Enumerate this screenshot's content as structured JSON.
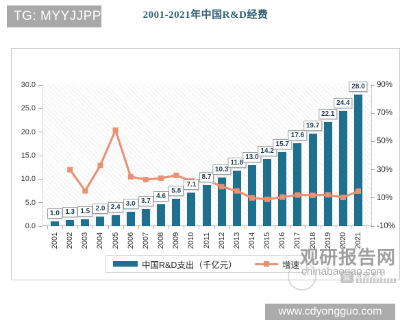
{
  "header": {
    "tg_label": "TG: MYYJJPP"
  },
  "watermarks": {
    "site_name": "观研报告网",
    "site_domain": "chinabaogao.com",
    "stamp_char": "宜",
    "stamp_text": "观研天下",
    "bottom_url": "www.cdyongguo.com"
  },
  "chart_data": {
    "type": "bar+line",
    "title": "2001-2021年中国R&D经费",
    "categories": [
      "2001",
      "2002",
      "2003",
      "2004",
      "2005",
      "2006",
      "2007",
      "2008",
      "2009",
      "2010",
      "2011",
      "2012",
      "2013",
      "2014",
      "2015",
      "2016",
      "2017",
      "2018",
      "2019",
      "2020",
      "2021"
    ],
    "series": [
      {
        "name": "中国R&D支出（千亿元）",
        "type": "bar",
        "color": "#1f6f8e",
        "values": [
          1.0,
          1.3,
          1.5,
          2.0,
          2.4,
          3.0,
          3.7,
          4.6,
          5.8,
          7.1,
          8.7,
          10.3,
          11.8,
          13.0,
          14.2,
          15.7,
          17.6,
          19.7,
          22.1,
          24.4,
          28.0
        ],
        "labels": [
          "1.0",
          "1.3",
          "1.5",
          "2.0",
          "2.4",
          "3.0",
          "3.7",
          "4.6",
          "5.8",
          "7.1",
          "8.7",
          "10.3",
          "11.8",
          "13.0",
          "14.2",
          "15.7",
          "17.6",
          "19.7",
          "22.1",
          "24.4",
          "28.0"
        ]
      },
      {
        "name": "增速",
        "type": "line",
        "color": "#e99273",
        "values": [
          null,
          30,
          15,
          33,
          58,
          25,
          23,
          24,
          26,
          22,
          23,
          18,
          15,
          10,
          9,
          10.6,
          12.1,
          11.9,
          12.2,
          10.4,
          14.8
        ]
      }
    ],
    "left_axis": {
      "min": 0,
      "max": 30,
      "labels": [
        "0.0",
        "5.0",
        "10.0",
        "15.0",
        "20.0",
        "25.0",
        "30.0"
      ],
      "values": [
        0,
        5,
        10,
        15,
        20,
        25,
        30
      ]
    },
    "right_axis": {
      "min": -10,
      "max": 90,
      "labels": [
        "-10%",
        "10%",
        "30%",
        "50%",
        "70%",
        "90%"
      ],
      "values": [
        -10,
        10,
        30,
        50,
        70,
        90
      ]
    },
    "legend_position": "bottom",
    "grid": "hatch-background"
  }
}
